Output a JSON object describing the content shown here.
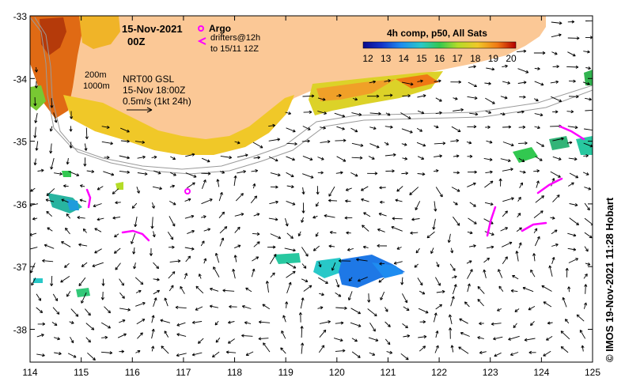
{
  "header": {
    "date": "15-Nov-2021",
    "time": "00Z"
  },
  "legend": {
    "argo_label": "Argo",
    "drifters_line1": "drifters@12h",
    "drifters_line2": "to 15/11 12Z",
    "product_title": "4h comp, p50, All Sats",
    "colorbar_ticks": [
      "12",
      "13",
      "14",
      "15",
      "16",
      "17",
      "18",
      "19",
      "20"
    ],
    "colorbar_range": [
      12,
      20
    ],
    "isobath_200": "200m",
    "isobath_1000": "1000m",
    "model_line1": "NRT00 GSL",
    "model_line2": "15-Nov 18:00Z",
    "scale_label": "0.5m/s (1kt 24h)"
  },
  "axes": {
    "x_labels": [
      "114",
      "115",
      "116",
      "117",
      "118",
      "119",
      "120",
      "121",
      "122",
      "123",
      "124",
      "125"
    ],
    "y_labels": [
      "-33",
      "-34",
      "-35",
      "-36",
      "-37",
      "-38"
    ]
  },
  "credit": "© IMOS 19-Nov-2021 11:28 Hobart",
  "colors": {
    "land": "#fbc896",
    "argo": "#ff00ff",
    "drifter": "#ff00ff",
    "isobath": "#9a9a9a",
    "sst_cold": "#0a0a8c",
    "sst_warm": "#b40000"
  }
}
